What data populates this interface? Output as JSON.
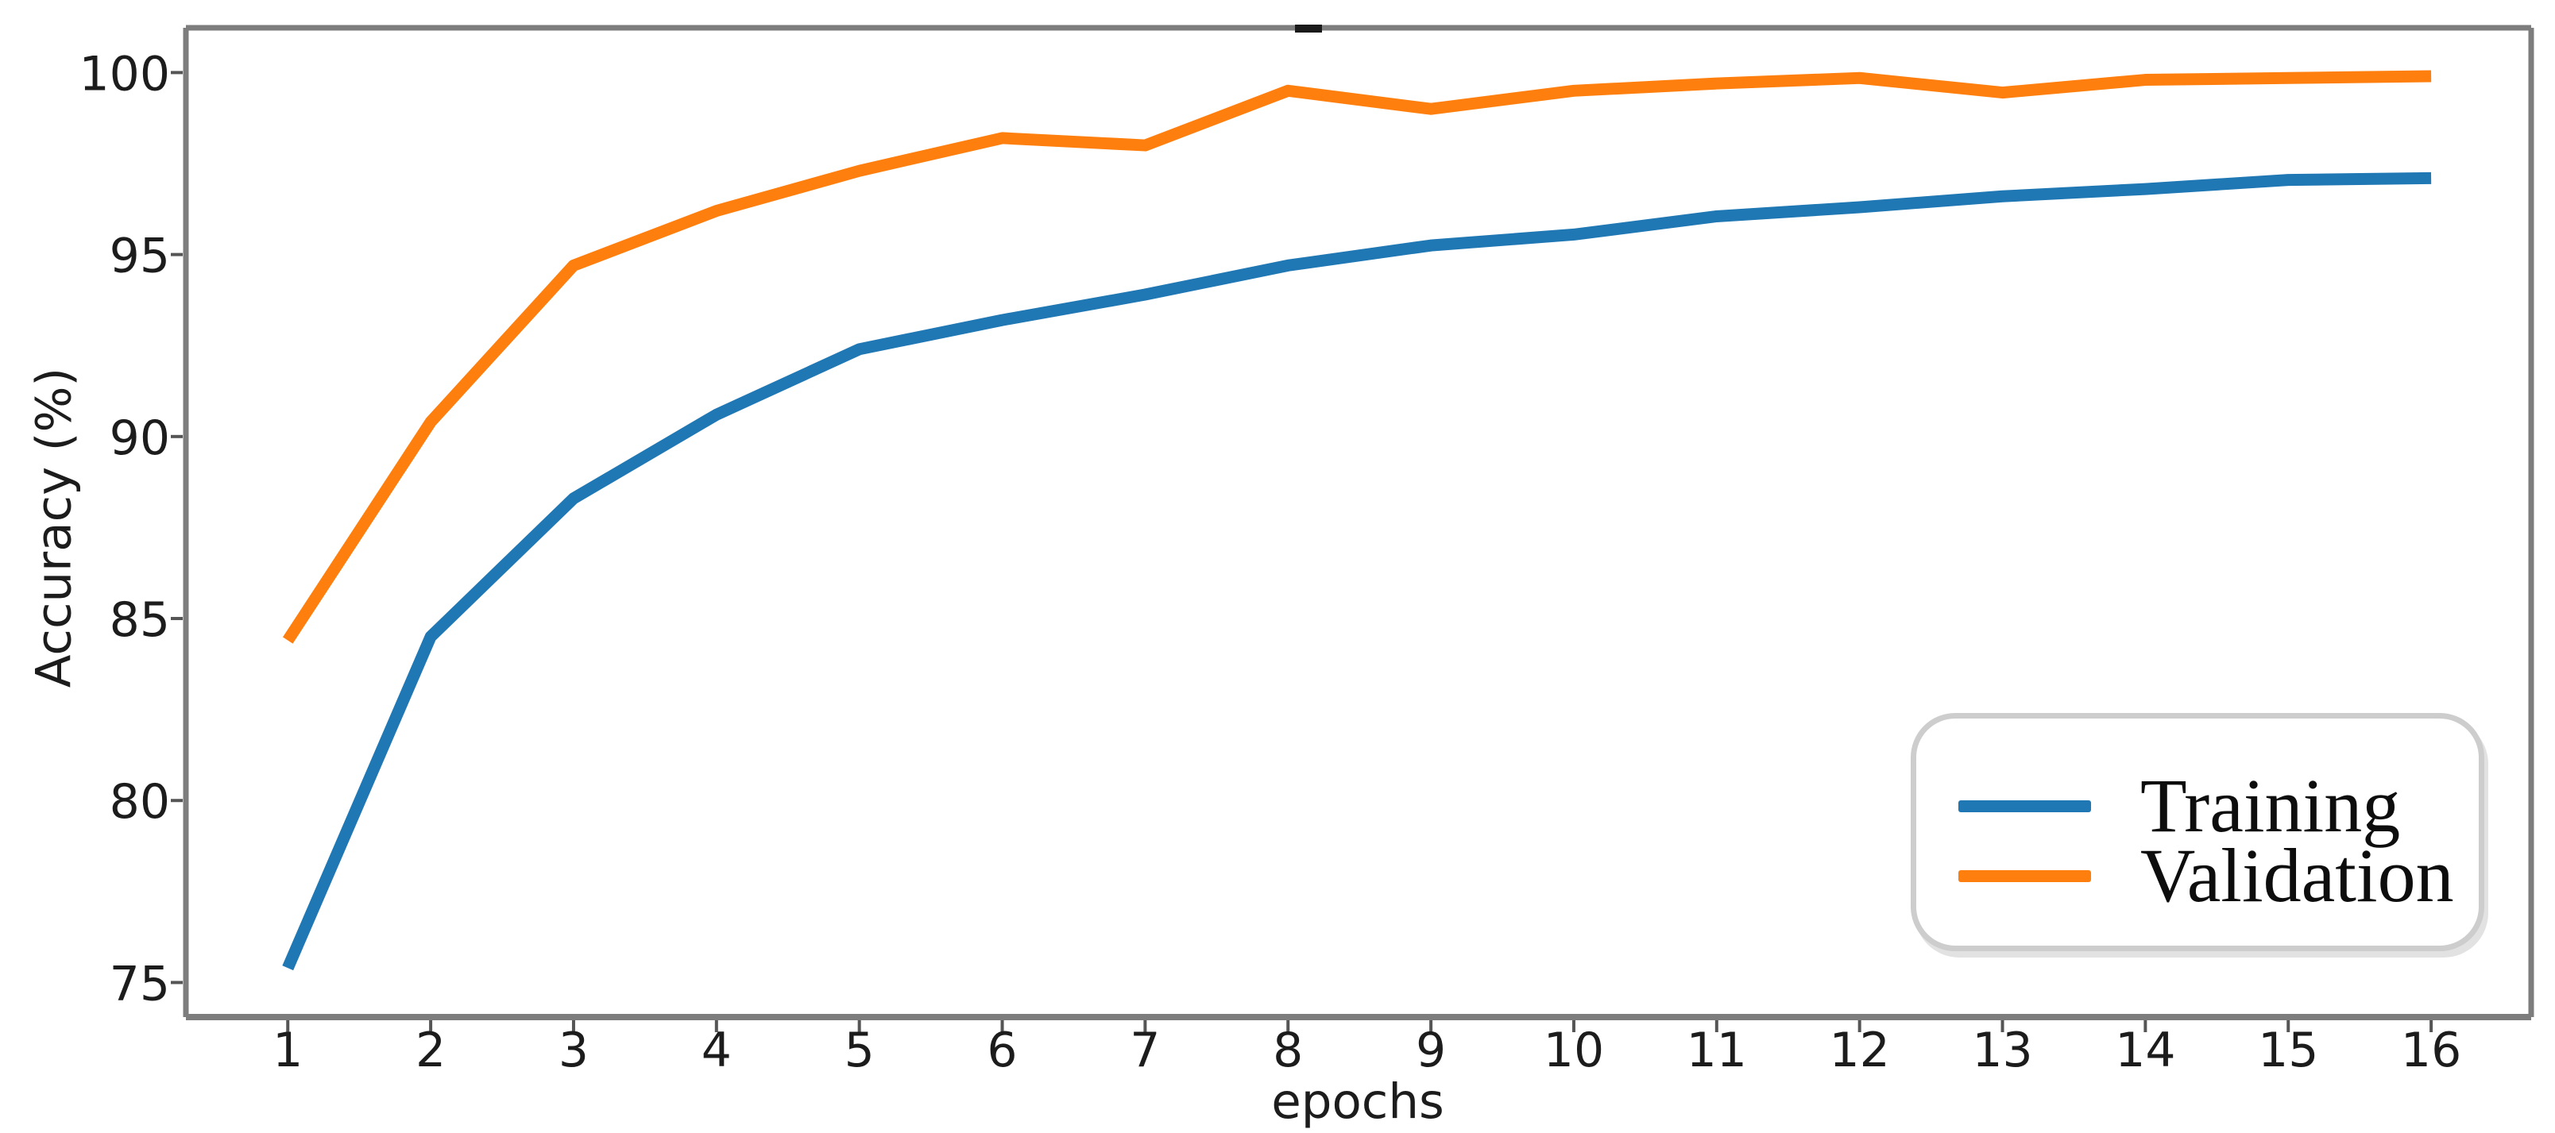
{
  "chart_data": {
    "type": "line",
    "title": "",
    "xlabel": "epochs",
    "ylabel": "Accuracy (%)",
    "x": [
      1,
      2,
      3,
      4,
      5,
      6,
      7,
      8,
      9,
      10,
      11,
      12,
      13,
      14,
      15,
      16
    ],
    "series": [
      {
        "name": "Training",
        "color": "#1f77b4",
        "values": [
          75.4,
          84.5,
          88.3,
          90.6,
          92.4,
          93.2,
          93.9,
          94.7,
          95.25,
          95.55,
          96.05,
          96.3,
          96.6,
          96.8,
          97.05,
          97.1
        ]
      },
      {
        "name": "Validation",
        "color": "#ff7f0e",
        "values": [
          84.4,
          90.4,
          94.7,
          96.2,
          97.3,
          98.2,
          98.0,
          99.5,
          99.0,
          99.5,
          99.7,
          99.85,
          99.45,
          99.8,
          99.85,
          99.9
        ]
      }
    ],
    "xticks": [
      1,
      2,
      3,
      4,
      5,
      6,
      7,
      8,
      9,
      10,
      11,
      12,
      13,
      14,
      15,
      16
    ],
    "yticks": [
      75,
      80,
      85,
      90,
      95,
      100
    ],
    "xlim": [
      0.287,
      16.7
    ],
    "ylim": [
      74.05,
      101.23
    ],
    "grid": false,
    "legend_position": "lower right",
    "colors": {
      "axis_spine": "#7d7d7d",
      "tick_mark": "#555555",
      "tick_label": "#1c1c1c",
      "legend_border": "#cdcdcd",
      "legend_text": "#0d0d0d",
      "background": "#ffffff",
      "top_artifact": "#1a1a1a"
    }
  }
}
